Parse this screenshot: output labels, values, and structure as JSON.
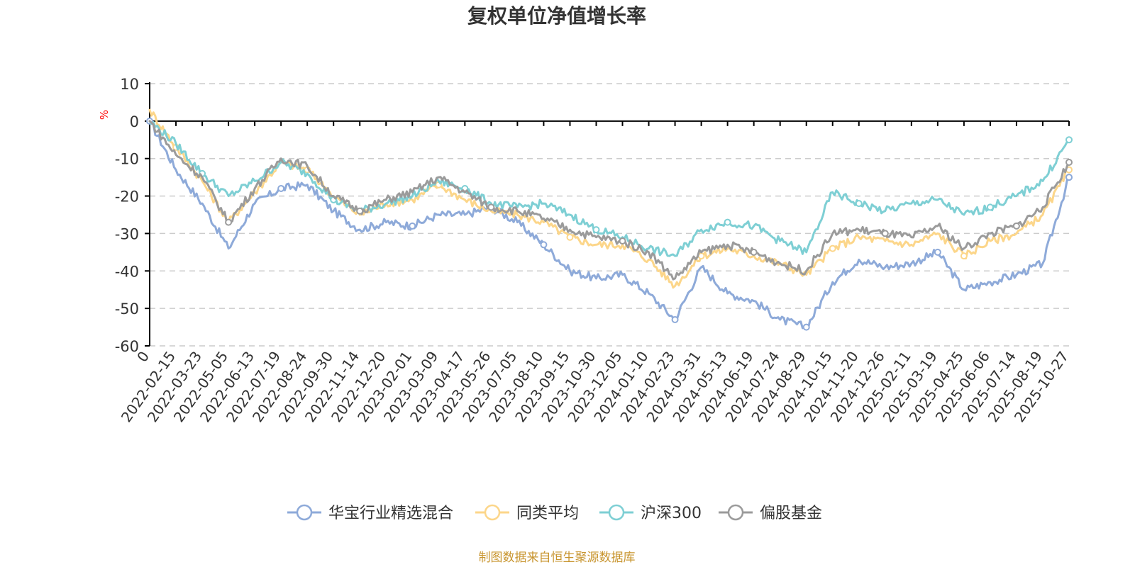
{
  "chart_data": {
    "type": "line",
    "title": "复权单位净值增长率",
    "ylabel": "%",
    "xlabel": "",
    "ylim": [
      -60,
      10
    ],
    "yticks": [
      10,
      0,
      -10,
      -20,
      -30,
      -40,
      -50,
      -60
    ],
    "grid": true,
    "legend_position": "bottom-center",
    "source": "制图数据来自恒生聚源数据库",
    "categories": [
      "0",
      "2022-02-15",
      "2022-03-23",
      "2022-05-05",
      "2022-06-13",
      "2022-07-19",
      "2022-08-24",
      "2022-09-30",
      "2022-11-14",
      "2022-12-20",
      "2023-02-01",
      "2023-03-09",
      "2023-04-17",
      "2023-05-26",
      "2023-07-05",
      "2023-08-10",
      "2023-09-15",
      "2023-10-30",
      "2023-12-05",
      "2024-01-10",
      "2024-02-23",
      "2024-03-31",
      "2024-05-13",
      "2024-06-19",
      "2024-07-24",
      "2024-08-29",
      "2024-10-15",
      "2024-11-20",
      "2024-12-26",
      "2025-02-11",
      "2025-03-19",
      "2025-04-25",
      "2025-06-06",
      "2025-07-14",
      "2025-08-19",
      "2025-10-27"
    ],
    "series": [
      {
        "name": "华宝行业精选混合",
        "color": "#8eaad9",
        "values": [
          0,
          -13,
          -22,
          -34,
          -22,
          -18,
          -17,
          -24,
          -29,
          -27,
          -28,
          -25,
          -25,
          -23,
          -27,
          -33,
          -40,
          -42,
          -41,
          -46,
          -53,
          -39,
          -46,
          -48,
          -53,
          -55,
          -43,
          -37,
          -39,
          -38,
          -35,
          -45,
          -43,
          -41,
          -38,
          -15
        ]
      },
      {
        "name": "同类平均",
        "color": "#fcd68a",
        "values": [
          3,
          -7,
          -16,
          -27,
          -19,
          -11,
          -13,
          -20,
          -25,
          -22,
          -21,
          -17,
          -21,
          -24,
          -25,
          -27,
          -31,
          -33,
          -33,
          -37,
          -44,
          -36,
          -34,
          -36,
          -38,
          -41,
          -34,
          -31,
          -32,
          -33,
          -30,
          -36,
          -32,
          -30,
          -25,
          -13
        ]
      },
      {
        "name": "沪深300",
        "color": "#7ecfd4",
        "values": [
          0,
          -6,
          -14,
          -20,
          -16,
          -11,
          -14,
          -21,
          -24,
          -22,
          -20,
          -16,
          -18,
          -22,
          -23,
          -22,
          -25,
          -29,
          -31,
          -34,
          -36,
          -29,
          -27,
          -28,
          -32,
          -35,
          -19,
          -22,
          -24,
          -22,
          -21,
          -25,
          -23,
          -20,
          -16,
          -5
        ]
      },
      {
        "name": "偏股基金",
        "color": "#9b9b9b",
        "values": [
          0,
          -9,
          -15,
          -27,
          -18,
          -10,
          -12,
          -20,
          -24,
          -21,
          -19,
          -15,
          -19,
          -23,
          -24,
          -26,
          -29,
          -31,
          -32,
          -35,
          -42,
          -35,
          -33,
          -35,
          -38,
          -40,
          -30,
          -29,
          -30,
          -31,
          -28,
          -34,
          -30,
          -28,
          -23,
          -11
        ]
      }
    ]
  }
}
